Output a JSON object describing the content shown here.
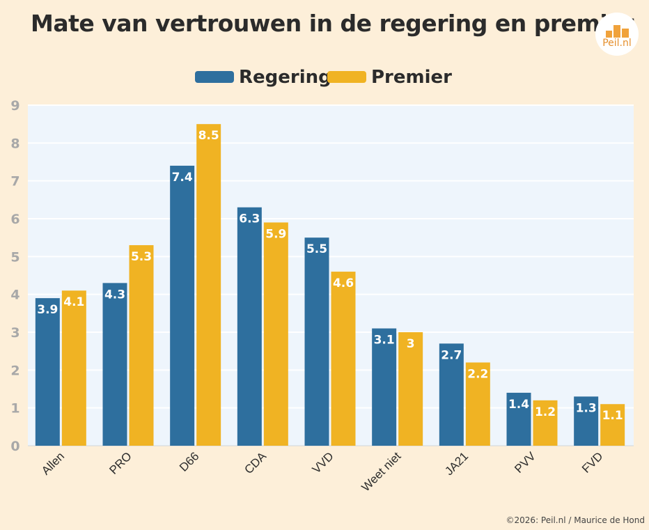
{
  "title": "Mate van vertrouwen in de regering en premier",
  "logo_text": "Peil.nl",
  "credit": "©2026: Peil.nl / Maurice de Hond",
  "colors": {
    "regering": "#2e6f9e",
    "premier": "#f0b323",
    "plot_bg": "#eef5fc",
    "page_bg": "#fdefd9",
    "tick_text": "#a8a8a8"
  },
  "chart_data": {
    "type": "bar",
    "categories": [
      "Allen",
      "PRO",
      "D66",
      "CDA",
      "VVD",
      "Weet niet",
      "JA21",
      "PVV",
      "FVD"
    ],
    "series": [
      {
        "name": "Regering",
        "values": [
          3.9,
          4.3,
          7.4,
          6.3,
          5.5,
          3.1,
          2.7,
          1.4,
          1.3
        ],
        "labels": [
          "3.9",
          "4.3",
          "7.4",
          "6.3",
          "5.5",
          "3.1",
          "2.7",
          "1.4",
          "1.3"
        ]
      },
      {
        "name": "Premier",
        "values": [
          4.1,
          5.3,
          8.5,
          5.9,
          4.6,
          3.0,
          2.2,
          1.2,
          1.1
        ],
        "labels": [
          "4.1",
          "5.3",
          "8.5",
          "5.9",
          "4.6",
          "3",
          "2.2",
          "1.2",
          "1.1"
        ]
      }
    ],
    "yticks": [
      "0",
      "1",
      "2",
      "3",
      "4",
      "5",
      "6",
      "7",
      "8",
      "9"
    ],
    "ylim": [
      0,
      9
    ],
    "grid": true,
    "legend_position": "top-center"
  }
}
